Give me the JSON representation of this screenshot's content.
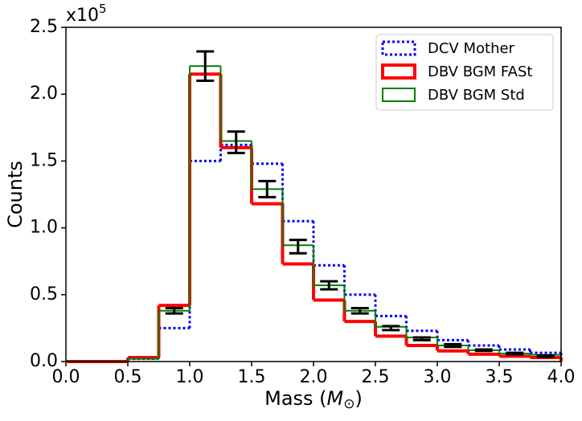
{
  "chart_data": {
    "type": "step-histogram",
    "y_offset_base": "x10",
    "y_offset_exp": "5",
    "y_label": "Counts",
    "x_label": {
      "prefix": "Mass (",
      "symbol": "M",
      "subscript": "⊙",
      "suffix": ")"
    },
    "bins": [
      0,
      0.25,
      0.5,
      0.75,
      1.0,
      1.25,
      1.5,
      1.75,
      2.0,
      2.25,
      2.5,
      2.75,
      3.0,
      3.25,
      3.5,
      3.75,
      4.0
    ],
    "series": [
      {
        "name": "DCV Mother",
        "color": "#0000ff",
        "style": "dotted",
        "values": [
          0,
          0,
          0.02,
          0.25,
          1.5,
          1.62,
          1.48,
          1.05,
          0.72,
          0.5,
          0.34,
          0.23,
          0.16,
          0.12,
          0.09,
          0.065
        ]
      },
      {
        "name": "DBV BGM FASt",
        "color": "#ff0000",
        "style": "thick",
        "values": [
          0,
          0,
          0.03,
          0.42,
          2.15,
          1.6,
          1.18,
          0.73,
          0.46,
          0.3,
          0.19,
          0.12,
          0.08,
          0.055,
          0.04,
          0.03
        ]
      },
      {
        "name": "DBV BGM Std",
        "color": "#008000",
        "style": "solid",
        "values": [
          0,
          0,
          0.02,
          0.38,
          2.21,
          1.65,
          1.29,
          0.87,
          0.57,
          0.38,
          0.26,
          0.18,
          0.12,
          0.085,
          0.06,
          0.05
        ]
      }
    ],
    "errorbars": {
      "color": "#000000",
      "x": [
        0.875,
        1.125,
        1.375,
        1.625,
        1.875,
        2.125,
        2.375,
        2.625,
        2.875,
        3.125,
        3.375,
        3.625,
        3.875
      ],
      "values": [
        0.38,
        2.21,
        1.64,
        1.29,
        0.86,
        0.57,
        0.38,
        0.25,
        0.17,
        0.12,
        0.085,
        0.06,
        0.04
      ],
      "errors": [
        0.02,
        0.11,
        0.08,
        0.06,
        0.05,
        0.03,
        0.02,
        0.015,
        0.01,
        0.01,
        0.005,
        0.005,
        0.005
      ]
    },
    "xlim": [
      0,
      4
    ],
    "ylim": [
      0,
      2.5
    ],
    "xticks": [
      {
        "value": 0,
        "label": "0.0"
      },
      0.5,
      {
        "value": 1,
        "label": "1.0"
      },
      1.5,
      {
        "value": 2,
        "label": "2.0"
      },
      2.5,
      {
        "value": 3,
        "label": "3.0"
      },
      3.5,
      {
        "value": 4,
        "label": "4.0"
      }
    ],
    "yticks": [
      {
        "value": 0,
        "label": "0.0"
      },
      0.5,
      {
        "value": 1,
        "label": "1.0"
      },
      1.5,
      {
        "value": 2,
        "label": "2.0"
      },
      2.5
    ],
    "legend": "upper-right",
    "grid": false
  }
}
